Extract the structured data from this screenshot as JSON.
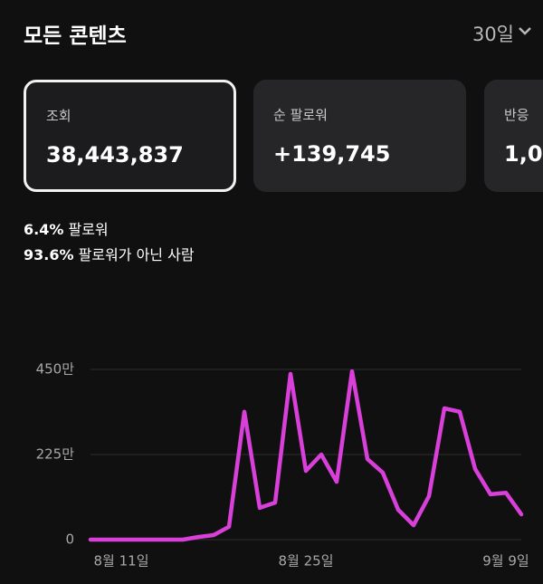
{
  "header": {
    "title": "모든 콘텐츠",
    "period": "30일"
  },
  "cards": [
    {
      "label": "조회",
      "value": "38,443,837"
    },
    {
      "label": "순 팔로워",
      "value": "+139,745"
    },
    {
      "label": "반응",
      "value": "1,0"
    }
  ],
  "stats": [
    {
      "percent": "6.4%",
      "label": "팔로워"
    },
    {
      "percent": "93.6%",
      "label": "팔로워가 아닌 사람"
    }
  ],
  "chart_data": {
    "type": "line",
    "categories": [
      null,
      null,
      "8월 11일",
      null,
      null,
      null,
      null,
      null,
      null,
      null,
      null,
      null,
      null,
      null,
      "8월 25일",
      null,
      null,
      null,
      null,
      null,
      null,
      null,
      null,
      null,
      null,
      null,
      null,
      "9월 9일",
      null
    ],
    "values": [
      0,
      0,
      0,
      0,
      0,
      0,
      0,
      7,
      12,
      34,
      338,
      84,
      98,
      438,
      182,
      225,
      153,
      445,
      213,
      177,
      79,
      38,
      115,
      347,
      338,
      187,
      120,
      124,
      67
    ],
    "color": "#d93fd9",
    "ylim": [
      0,
      450
    ],
    "yticks": [
      0,
      {
        "value": 225,
        "label": "225만"
      },
      {
        "value": 450,
        "label": "450만"
      }
    ],
    "grid": true
  }
}
